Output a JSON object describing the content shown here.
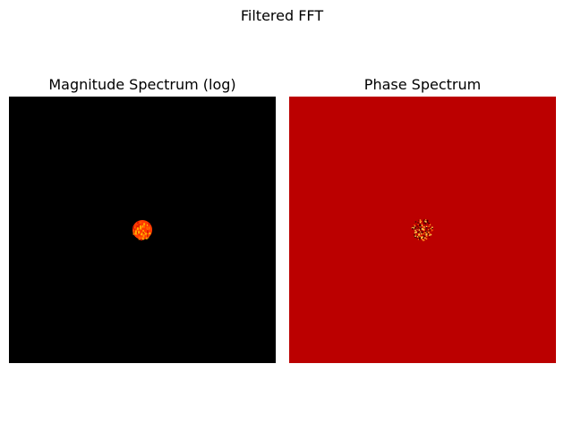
{
  "figure": {
    "suptitle": "Filtered FFT"
  },
  "panels": [
    {
      "title": "Magnitude Spectrum (log)",
      "background_color": "#000000",
      "blob_colors": [
        "#ffb000",
        "#ff6a00",
        "#ff3a00",
        "#e01a00"
      ]
    },
    {
      "title": "Phase Spectrum",
      "background_color": "#bb0000",
      "noise_colors": [
        "#ffd24d",
        "#ff8c1a",
        "#7a0000",
        "#3a0000",
        "#ff4d00"
      ]
    }
  ],
  "colormap": "hot"
}
